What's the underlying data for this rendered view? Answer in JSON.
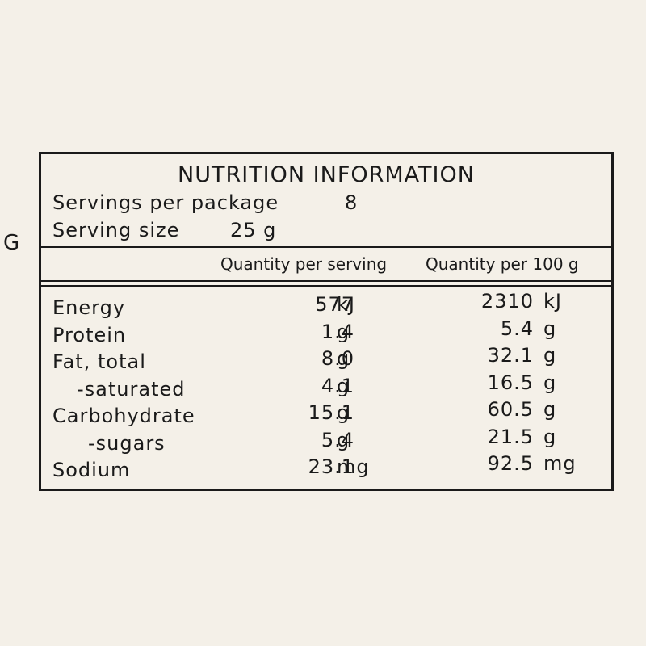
{
  "side_letter": "G",
  "title": "NUTRITION INFORMATION",
  "servings_per_package": {
    "label": "Servings per package",
    "value": "8"
  },
  "serving_size": {
    "label": "Serving size",
    "value": "25 g"
  },
  "table": {
    "headers": [
      "Quantity per serving",
      "Quantity per 100 g"
    ],
    "rows": [
      {
        "name": "Energy",
        "per_serving": "577",
        "per_serving_unit": "kJ",
        "per_100g": "2310",
        "per_100g_unit": "kJ"
      },
      {
        "name": "Protein",
        "per_serving": "1.4",
        "per_serving_unit": "g",
        "per_100g": "5.4",
        "per_100g_unit": "g"
      },
      {
        "name": "Fat, total",
        "per_serving": "8.0",
        "per_serving_unit": "g",
        "per_100g": "32.1",
        "per_100g_unit": "g"
      },
      {
        "name": "-saturated",
        "per_serving": "4.1",
        "per_serving_unit": "g",
        "per_100g": "16.5",
        "per_100g_unit": "g"
      },
      {
        "name": "Carbohydrate",
        "per_serving": "15.1",
        "per_serving_unit": "g",
        "per_100g": "60.5",
        "per_100g_unit": "g"
      },
      {
        "name": "-sugars",
        "per_serving": "5.4",
        "per_serving_unit": "g",
        "per_100g": "21.5",
        "per_100g_unit": "g"
      },
      {
        "name": "Sodium",
        "per_serving": "23.1",
        "per_serving_unit": "mg",
        "per_100g": "92.5",
        "per_100g_unit": "mg"
      }
    ]
  }
}
